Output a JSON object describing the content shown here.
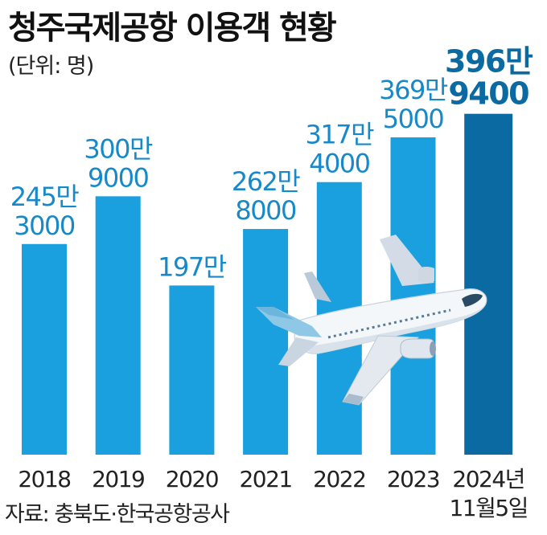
{
  "header": {
    "title": "청주국제공항 이용객 현황",
    "unit": "(단위: 명)"
  },
  "footer": {
    "source": "자료: 충북도·한국공항공사"
  },
  "colors": {
    "bar": "#1aa0de",
    "bar_highlight": "#0c6aa3",
    "label": "#1789c9",
    "label_highlight": "#0c6aa3",
    "axis_text": "#222222"
  },
  "chart_data": {
    "type": "bar",
    "title": "청주국제공항 이용객 현황",
    "unit": "(단위: 명)",
    "categories": [
      "2018",
      "2019",
      "2020",
      "2021",
      "2022",
      "2023",
      "2024년 11월5일"
    ],
    "category_lines": [
      [
        "2018"
      ],
      [
        "2019"
      ],
      [
        "2020"
      ],
      [
        "2021"
      ],
      [
        "2022"
      ],
      [
        "2023"
      ],
      [
        "2024년",
        "11월5일"
      ]
    ],
    "values": [
      2453000,
      3009000,
      1970000,
      2628000,
      3174000,
      3695000,
      3969400
    ],
    "value_labels": [
      [
        "245만",
        "3000"
      ],
      [
        "300만",
        "9000"
      ],
      [
        "197만"
      ],
      [
        "262만",
        "8000"
      ],
      [
        "317만",
        "4000"
      ],
      [
        "369만",
        "5000"
      ],
      [
        "396만",
        "9400"
      ]
    ],
    "highlight_index": 6,
    "legend": "none",
    "grid": false
  }
}
